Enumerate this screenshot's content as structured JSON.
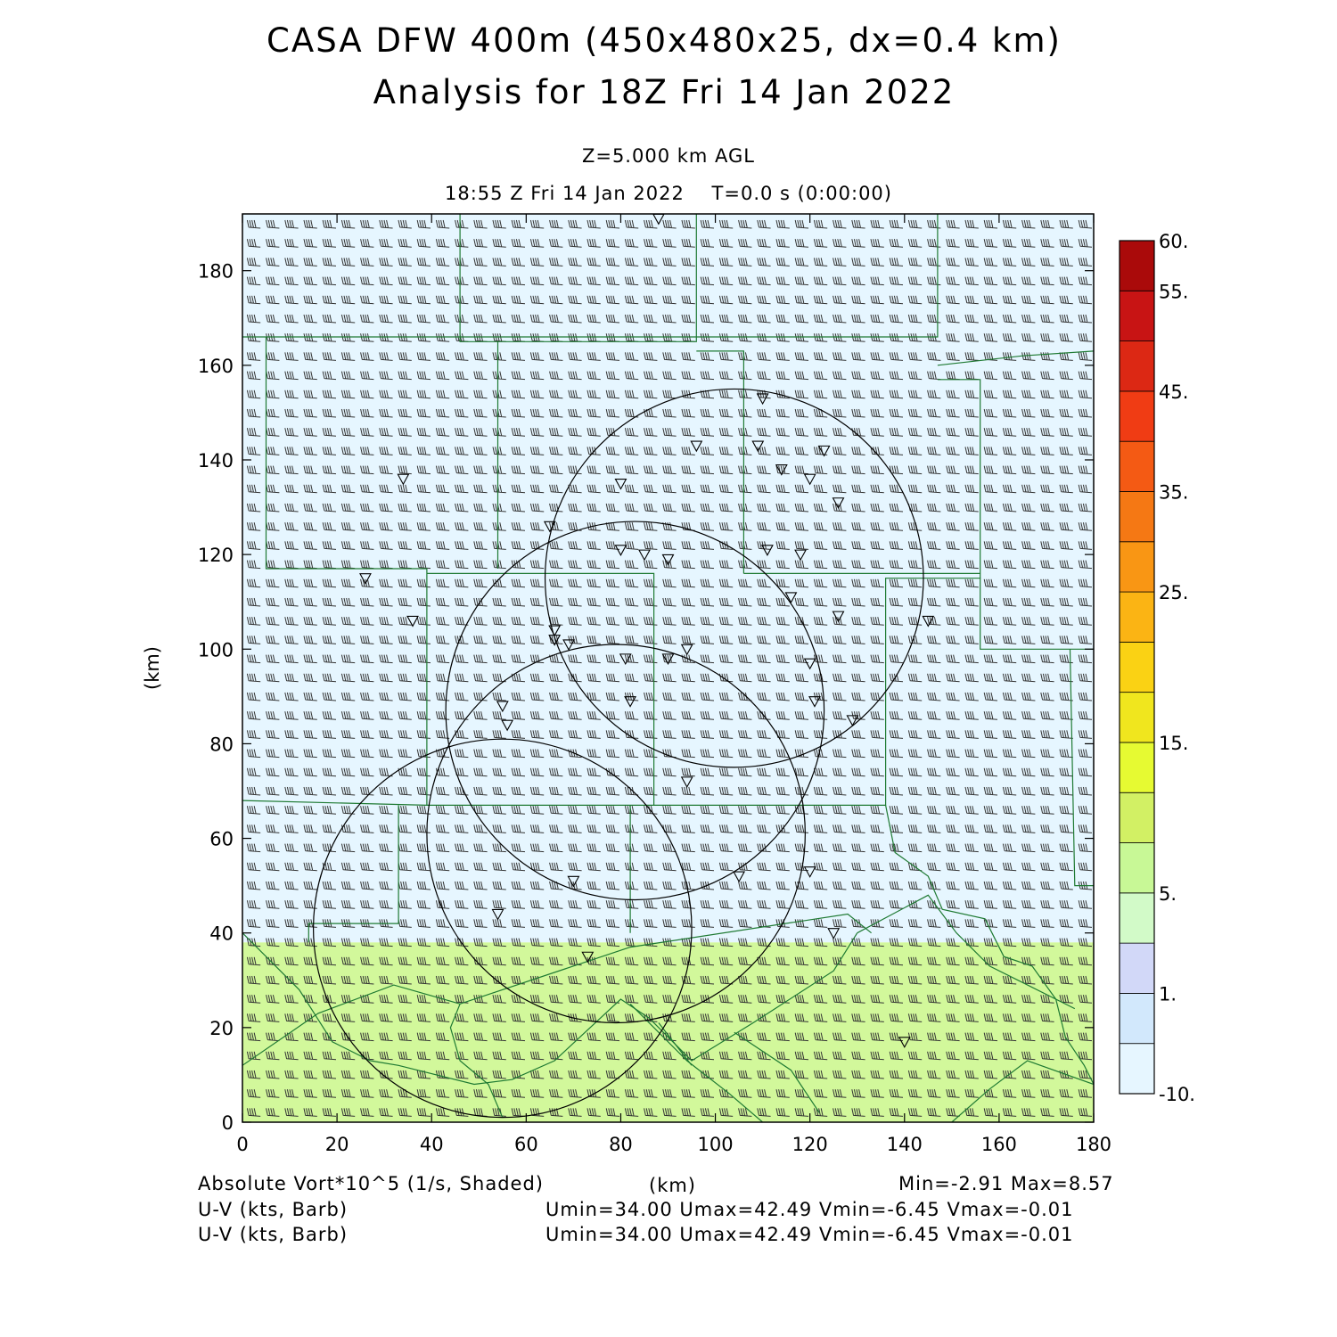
{
  "title_line1": "CASA DFW 400m (450x480x25, dx=0.4 km)",
  "title_line2": "Analysis for 18Z Fri 14 Jan 2022",
  "level_label": "Z=5.000 km AGL",
  "time_label": "18:55 Z Fri 14 Jan 2022    T=0.0 s (0:00:00)",
  "footer": {
    "shaded_field": "Absolute Vort*10^5 (1/s, Shaded)",
    "xunit": "(km)",
    "minmax": "Min=-2.91 Max=8.57",
    "barb_label_1": "U-V (kts, Barb)",
    "barb_stats_1": "Umin=34.00 Umax=42.49 Vmin=-6.45 Vmax=-0.01",
    "barb_label_2": "U-V (kts, Barb)",
    "barb_stats_2": "Umin=34.00 Umax=42.49 Vmin=-6.45 Vmax=-0.01"
  },
  "chart_data": {
    "type": "heatmap",
    "title": "CASA DFW 400m (450x480x25, dx=0.4 km)",
    "subtitle": "Analysis for 18Z Fri 14 Jan 2022",
    "field": "Absolute Vort*10^5 (1/s, Shaded)",
    "xlabel": "(km)",
    "ylabel": "(km)",
    "xlim": [
      0,
      180
    ],
    "ylim": [
      0,
      192
    ],
    "xticks": [
      0,
      20,
      40,
      60,
      80,
      100,
      120,
      140,
      160,
      180
    ],
    "yticks": [
      0,
      20,
      40,
      60,
      80,
      100,
      120,
      140,
      160,
      180
    ],
    "field_min": -2.91,
    "field_max": 8.57,
    "colorbar": {
      "boundaries": [
        -10,
        -2.5,
        1,
        2.5,
        5,
        7.5,
        10,
        15,
        17.5,
        20,
        25,
        30,
        35,
        40,
        45,
        50,
        55,
        60
      ],
      "colors": [
        "#e6f6ff",
        "#d2e8fc",
        "#d2d8f8",
        "#d2fac8",
        "#c8f896",
        "#d2f064",
        "#e6fa32",
        "#f0e61e",
        "#fad214",
        "#fbb414",
        "#f99614",
        "#f57814",
        "#f45a14",
        "#f03c14",
        "#dc2814",
        "#c81414",
        "#aa0a0a"
      ],
      "labels": [
        {
          "value": 60,
          "text": "60."
        },
        {
          "value": 55,
          "text": "55."
        },
        {
          "value": 45,
          "text": "45."
        },
        {
          "value": 35,
          "text": "35."
        },
        {
          "value": 25,
          "text": "25."
        },
        {
          "value": 15,
          "text": "15."
        },
        {
          "value": 5,
          "text": "5."
        },
        {
          "value": 1,
          "text": "1."
        },
        {
          "value": -10,
          "text": "-10."
        }
      ]
    },
    "shaded_regions": [
      {
        "x": [
          0,
          180
        ],
        "y": [
          38,
          192
        ],
        "value": 0,
        "color": "#e6f6ff"
      },
      {
        "x": [
          0,
          180
        ],
        "y": [
          0,
          38
        ],
        "value": 6,
        "color": "#d2f89b"
      }
    ],
    "wind": {
      "umin": 34.0,
      "umax": 42.49,
      "vmin": -6.45,
      "vmax": -0.01,
      "units": "kts"
    },
    "radars": [
      {
        "name": "radar-1",
        "x": 55,
        "y": 41,
        "radius_km": 40
      },
      {
        "name": "radar-2",
        "x": 79,
        "y": 61,
        "radius_km": 40
      },
      {
        "name": "radar-3",
        "x": 83,
        "y": 87,
        "radius_km": 40
      },
      {
        "name": "radar-4",
        "x": 104,
        "y": 115,
        "radius_km": 40
      }
    ],
    "stations": [
      [
        88,
        191
      ],
      [
        34,
        136
      ],
      [
        110,
        153
      ],
      [
        96,
        143
      ],
      [
        109,
        143
      ],
      [
        123,
        142
      ],
      [
        80,
        135
      ],
      [
        114,
        138
      ],
      [
        120,
        136
      ],
      [
        126,
        131
      ],
      [
        65,
        126
      ],
      [
        80,
        121
      ],
      [
        85,
        120
      ],
      [
        90,
        119
      ],
      [
        111,
        121
      ],
      [
        118,
        120
      ],
      [
        26,
        115
      ],
      [
        116,
        111
      ],
      [
        36,
        106
      ],
      [
        66,
        104
      ],
      [
        66,
        102
      ],
      [
        69,
        101
      ],
      [
        126,
        107
      ],
      [
        145,
        106
      ],
      [
        81,
        98
      ],
      [
        90,
        98
      ],
      [
        94,
        100
      ],
      [
        120,
        97
      ],
      [
        82,
        89
      ],
      [
        121,
        89
      ],
      [
        55,
        88
      ],
      [
        56,
        84
      ],
      [
        129,
        85
      ],
      [
        94,
        72
      ],
      [
        70,
        51
      ],
      [
        105,
        52
      ],
      [
        120,
        53
      ],
      [
        54,
        44
      ],
      [
        125,
        40
      ],
      [
        73,
        35
      ],
      [
        140,
        17
      ]
    ],
    "boundaries": [
      [
        [
          0,
          166
        ],
        [
          147,
          166
        ],
        [
          147,
          192
        ]
      ],
      [
        [
          46,
          192
        ],
        [
          46,
          165
        ],
        [
          96,
          165
        ],
        [
          96,
          192
        ]
      ],
      [
        [
          5,
          166
        ],
        [
          5,
          117
        ],
        [
          39,
          117
        ],
        [
          39,
          67
        ],
        [
          136,
          67
        ],
        [
          136,
          115
        ],
        [
          156,
          115
        ],
        [
          156,
          100
        ],
        [
          180,
          100
        ]
      ],
      [
        [
          54,
          165
        ],
        [
          54,
          117
        ]
      ],
      [
        [
          96,
          163
        ],
        [
          106,
          163
        ],
        [
          106,
          116
        ]
      ],
      [
        [
          147,
          157
        ],
        [
          156,
          157
        ],
        [
          156,
          115
        ]
      ],
      [
        [
          147,
          160
        ],
        [
          165,
          162
        ],
        [
          180,
          163
        ]
      ],
      [
        [
          39,
          116
        ],
        [
          87,
          116
        ],
        [
          87,
          67
        ]
      ],
      [
        [
          106,
          116
        ],
        [
          156,
          116
        ]
      ],
      [
        [
          0,
          68
        ],
        [
          39,
          67
        ]
      ],
      [
        [
          33,
          67
        ],
        [
          33,
          42
        ],
        [
          14,
          42
        ],
        [
          14,
          38
        ]
      ],
      [
        [
          82,
          67
        ],
        [
          82,
          40
        ]
      ],
      [
        [
          136,
          67
        ],
        [
          138,
          57
        ],
        [
          145,
          52
        ],
        [
          148,
          45
        ],
        [
          157,
          43
        ],
        [
          161,
          35
        ],
        [
          167,
          33
        ],
        [
          172,
          26
        ],
        [
          174,
          18
        ],
        [
          178,
          12
        ],
        [
          180,
          8
        ]
      ],
      [
        [
          175,
          100
        ],
        [
          176,
          50
        ],
        [
          180,
          50
        ]
      ],
      [
        [
          0,
          40
        ],
        [
          12,
          28
        ],
        [
          19,
          17
        ],
        [
          27,
          13
        ],
        [
          33,
          12
        ],
        [
          49,
          8
        ],
        [
          57,
          9
        ],
        [
          66,
          13
        ],
        [
          80,
          26
        ],
        [
          86,
          22
        ],
        [
          95,
          13
        ],
        [
          108,
          21
        ],
        [
          125,
          32
        ],
        [
          130,
          40
        ]
      ],
      [
        [
          0,
          12
        ],
        [
          16,
          23
        ],
        [
          32,
          29
        ],
        [
          46,
          25
        ],
        [
          82,
          37
        ],
        [
          128,
          44
        ],
        [
          133,
          40
        ]
      ],
      [
        [
          130,
          40
        ],
        [
          145,
          48
        ],
        [
          151,
          40
        ],
        [
          158,
          33
        ],
        [
          176,
          24
        ]
      ],
      [
        [
          46,
          25
        ],
        [
          44,
          20
        ],
        [
          46,
          13
        ],
        [
          52,
          8
        ],
        [
          55,
          1
        ]
      ],
      [
        [
          82,
          25
        ],
        [
          94,
          13
        ],
        [
          103,
          6
        ],
        [
          110,
          0
        ]
      ],
      [
        [
          104,
          19
        ],
        [
          116,
          11
        ],
        [
          122,
          2
        ]
      ],
      [
        [
          88,
          21
        ],
        [
          95,
          12
        ]
      ],
      [
        [
          150,
          0
        ],
        [
          158,
          7
        ],
        [
          166,
          13
        ],
        [
          180,
          8
        ]
      ]
    ]
  }
}
